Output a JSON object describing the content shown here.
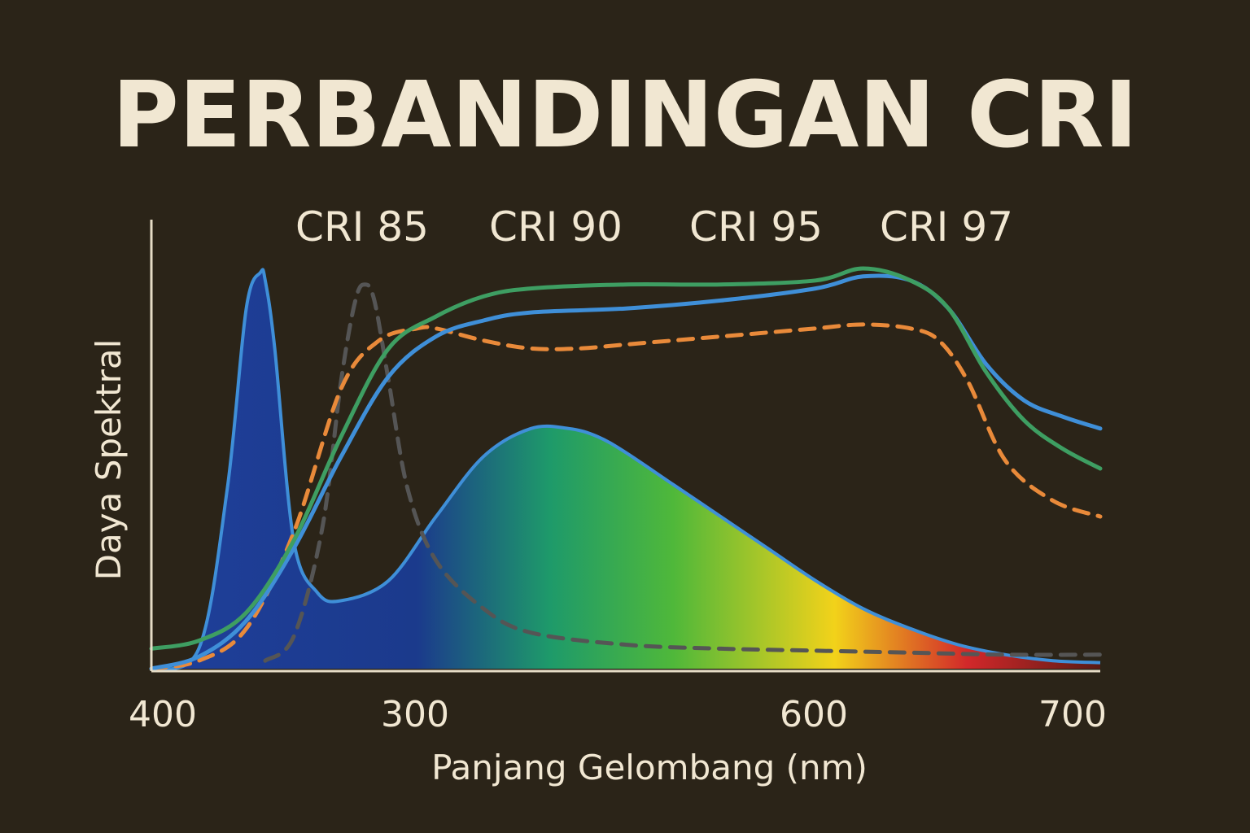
{
  "chart_data": {
    "type": "line",
    "title": "PERBANDINGAN CRI",
    "xlabel": "Panjang Gelombang (nm)",
    "ylabel": "Daya Spektral",
    "x_tick_labels": [
      "400",
      "300",
      "600",
      "700"
    ],
    "legend_entries": [
      "CRI 85",
      "CRI 90",
      "CRI 95",
      "CRI 97"
    ],
    "legend_placement": "top",
    "grid": false,
    "ylim": [
      0,
      100
    ],
    "spectrum_stops": [
      {
        "offset": 0.0,
        "color": "#1f3f9a"
      },
      {
        "offset": 0.28,
        "color": "#1b3a8c"
      },
      {
        "offset": 0.42,
        "color": "#1e9a6a"
      },
      {
        "offset": 0.55,
        "color": "#4fb83a"
      },
      {
        "offset": 0.72,
        "color": "#f2d21a"
      },
      {
        "offset": 0.86,
        "color": "#d2282a"
      },
      {
        "offset": 1.0,
        "color": "#5a1a14"
      }
    ],
    "series": [
      {
        "role": "spectrum-fill",
        "color": "#1f3f9a",
        "style": "filled-gradient",
        "x": [
          0,
          0.05,
          0.08,
          0.1,
          0.115,
          0.12,
          0.13,
          0.15,
          0.175,
          0.2,
          0.25,
          0.3,
          0.35,
          0.4,
          0.44,
          0.47,
          0.5,
          0.55,
          0.6,
          0.65,
          0.7,
          0.75,
          0.8,
          0.85,
          0.9,
          0.95,
          1.0
        ],
        "values": [
          0,
          5,
          45,
          90,
          99,
          97,
          80,
          32,
          19,
          17,
          22,
          38,
          53,
          60,
          60,
          58,
          54,
          46,
          38,
          30,
          22,
          15,
          10,
          6,
          3.5,
          2,
          1.5
        ]
      },
      {
        "color": "#555555",
        "style": "dashed",
        "x": [
          0.12,
          0.15,
          0.18,
          0.2,
          0.215,
          0.225,
          0.235,
          0.25,
          0.27,
          0.3,
          0.35,
          0.4,
          0.5,
          0.6,
          0.7,
          0.8,
          0.9,
          1.0
        ],
        "values": [
          2,
          8,
          35,
          72,
          92,
          96,
          92,
          72,
          45,
          27,
          15,
          9,
          6,
          5,
          4.5,
          4,
          3.5,
          3.5
        ]
      },
      {
        "color": "#e98a3a",
        "style": "dashed",
        "x": [
          0,
          0.05,
          0.1,
          0.15,
          0.2,
          0.24,
          0.28,
          0.3,
          0.35,
          0.4,
          0.45,
          0.5,
          0.55,
          0.6,
          0.65,
          0.7,
          0.75,
          0.8,
          0.83,
          0.86,
          0.9,
          0.95,
          1.0
        ],
        "values": [
          0,
          2,
          10,
          34,
          70,
          82,
          85,
          85,
          82,
          80,
          80,
          81,
          82,
          83,
          84,
          85,
          86,
          85,
          82,
          72,
          52,
          42,
          38
        ]
      },
      {
        "color": "#3f8fd8",
        "style": "solid",
        "x": [
          0,
          0.05,
          0.1,
          0.15,
          0.2,
          0.25,
          0.3,
          0.35,
          0.4,
          0.5,
          0.6,
          0.7,
          0.75,
          0.8,
          0.84,
          0.88,
          0.92,
          0.96,
          1.0
        ],
        "values": [
          0,
          3,
          12,
          30,
          53,
          73,
          83,
          87,
          89,
          90,
          92,
          95,
          98,
          97,
          90,
          76,
          67,
          63,
          60
        ]
      },
      {
        "color": "#3e9e62",
        "style": "solid",
        "x": [
          0,
          0.05,
          0.1,
          0.15,
          0.2,
          0.25,
          0.3,
          0.35,
          0.4,
          0.5,
          0.6,
          0.7,
          0.75,
          0.8,
          0.84,
          0.88,
          0.92,
          0.96,
          1.0
        ],
        "values": [
          5,
          7,
          14,
          32,
          58,
          80,
          88,
          93,
          95,
          96,
          96,
          97,
          100,
          97,
          90,
          74,
          62,
          55,
          50
        ]
      }
    ]
  }
}
